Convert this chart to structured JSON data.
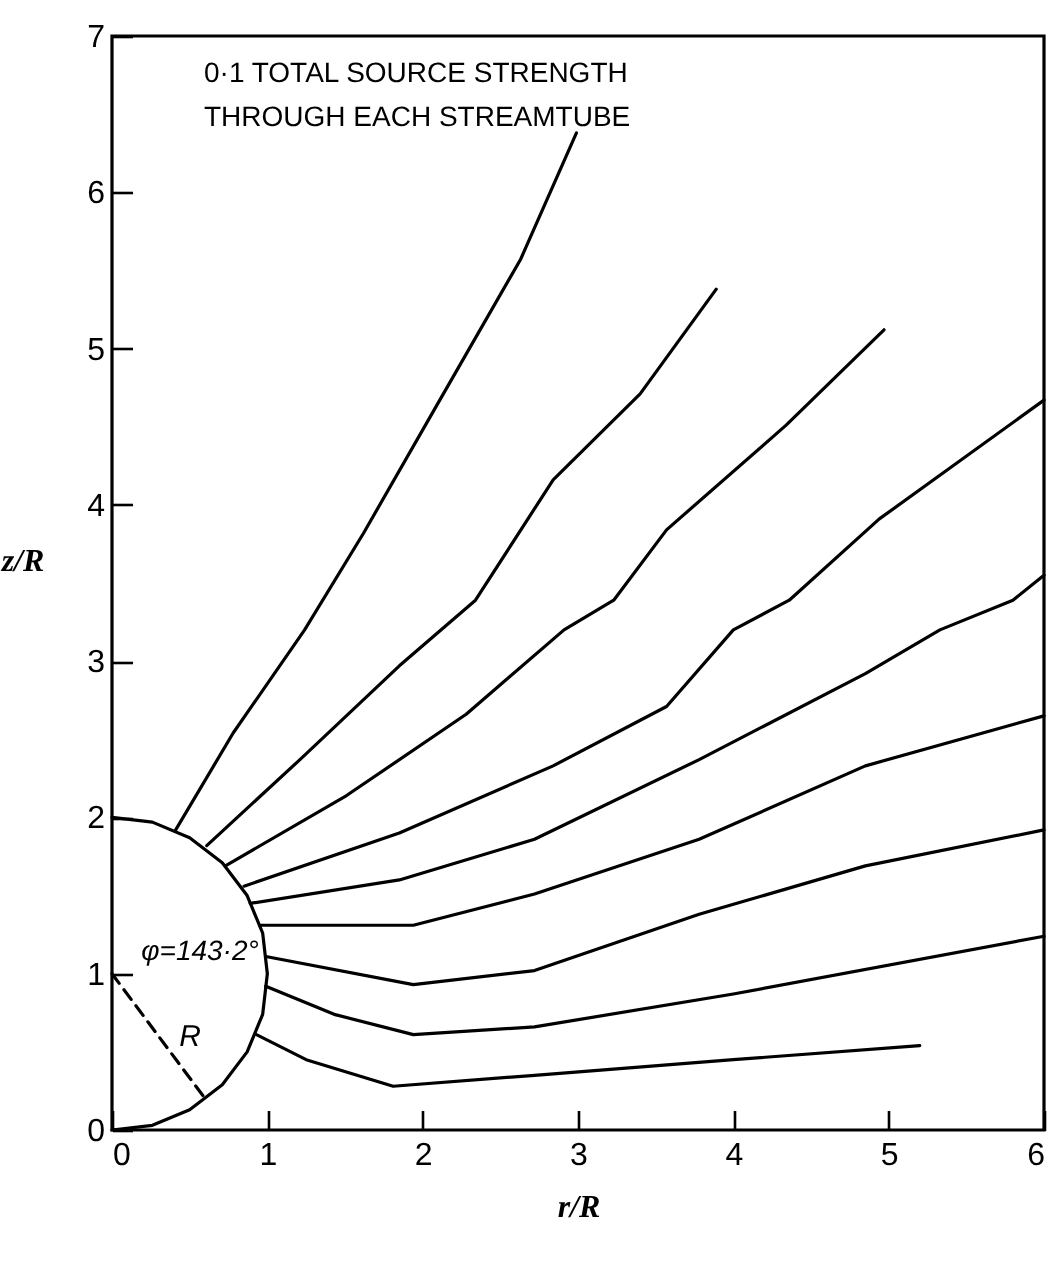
{
  "chart_data": {
    "type": "line",
    "xlabel": "r/R",
    "ylabel": "z/R",
    "xlim": [
      0,
      6
    ],
    "ylim": [
      0,
      7
    ],
    "xticks": [
      0,
      1,
      2,
      3,
      4,
      5,
      6
    ],
    "yticks": [
      0,
      1,
      2,
      3,
      4,
      5,
      6,
      7
    ],
    "marker": "none",
    "annotations": [
      "0·1 TOTAL SOURCE STRENGTH\nTHROUGH EACH STREAMTUBE",
      "φ=143·2°",
      "R"
    ],
    "series": [
      {
        "color": "#000000",
        "x": [
          0,
          0.26,
          0.5,
          0.71,
          0.87,
          0.97,
          1,
          0.97,
          0.87,
          0.71,
          0.5,
          0.26,
          0
        ],
        "values": [
          2,
          1.97,
          1.87,
          1.71,
          1.5,
          1.26,
          1,
          0.74,
          0.5,
          0.29,
          0.13,
          0.03,
          0
        ]
      },
      {
        "color": "#000000",
        "line_style": "dashed",
        "x": [
          0,
          0.6
        ],
        "values": [
          1,
          0.2
        ]
      },
      {
        "color": "#000000",
        "x": [
          0.41,
          0.78,
          1.24,
          1.62,
          2.11,
          2.63,
          2.99
        ],
        "values": [
          1.92,
          2.54,
          3.2,
          3.82,
          4.67,
          5.57,
          6.38
        ]
      },
      {
        "color": "#000000",
        "x": [
          0.61,
          1.21,
          1.85,
          2.34,
          2.84,
          3.4,
          3.89
        ],
        "values": [
          1.82,
          2.37,
          2.97,
          3.39,
          4.16,
          4.71,
          5.38
        ]
      },
      {
        "color": "#000000",
        "x": [
          0.73,
          1.51,
          2.28,
          2.91,
          3.23,
          3.57,
          4.34,
          4.97
        ],
        "values": [
          1.69,
          2.14,
          2.66,
          3.2,
          3.39,
          3.84,
          4.51,
          5.12
        ]
      },
      {
        "color": "#000000",
        "x": [
          0.85,
          1.85,
          2.84,
          3.57,
          4,
          4.36,
          4.94,
          6
        ],
        "values": [
          1.56,
          1.9,
          2.33,
          2.71,
          3.2,
          3.39,
          3.91,
          4.67
        ]
      },
      {
        "color": "#000000",
        "x": [
          0.89,
          1.85,
          2.72,
          3.78,
          4.85,
          5.33,
          5.8,
          6
        ],
        "values": [
          1.45,
          1.6,
          1.86,
          2.37,
          2.92,
          3.2,
          3.39,
          3.55
        ]
      },
      {
        "color": "#000000",
        "x": [
          0.95,
          1.94,
          2.72,
          3.78,
          4.85,
          6
        ],
        "values": [
          1.31,
          1.31,
          1.51,
          1.86,
          2.33,
          2.65
        ]
      },
      {
        "color": "#000000",
        "x": [
          0.99,
          1.94,
          2.72,
          3.78,
          4.85,
          6
        ],
        "values": [
          1.11,
          0.93,
          1.02,
          1.38,
          1.69,
          1.92
        ]
      },
      {
        "color": "#000000",
        "x": [
          0.99,
          1.43,
          1.94,
          2.72,
          4,
          6
        ],
        "values": [
          0.92,
          0.74,
          0.61,
          0.66,
          0.87,
          1.24
        ]
      },
      {
        "color": "#000000",
        "x": [
          0.93,
          1.25,
          1.81,
          2.72,
          4,
          5.2
        ],
        "values": [
          0.61,
          0.45,
          0.28,
          0.35,
          0.45,
          0.54
        ]
      }
    ]
  }
}
